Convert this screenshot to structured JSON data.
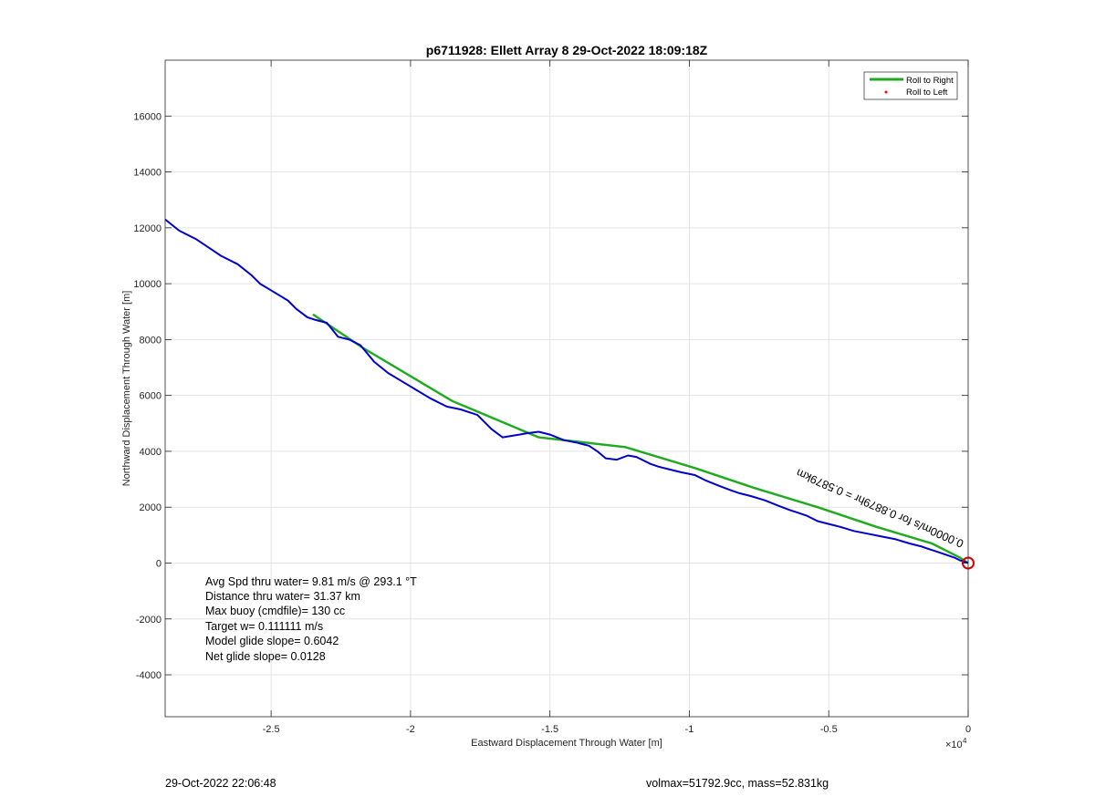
{
  "chart_data": {
    "type": "line",
    "title": "p6711928: Ellett Array 8 29-Oct-2022 18:09:18Z",
    "xlabel": "Eastward Displacement Through Water [m]",
    "ylabel": "Northward Displacement Through Water [m]",
    "x_exponent_label": "×10",
    "x_exponent": "4",
    "xlim": [
      -28800,
      0
    ],
    "ylim": [
      -5500,
      18000
    ],
    "xticks": [
      -25000,
      -20000,
      -15000,
      -10000,
      -5000,
      0
    ],
    "xtick_labels": [
      "-2.5",
      "-2",
      "-1.5",
      "-1",
      "-0.5",
      "0"
    ],
    "yticks": [
      -4000,
      -2000,
      0,
      2000,
      4000,
      6000,
      8000,
      10000,
      12000,
      14000,
      16000
    ],
    "ytick_labels": [
      "-4000",
      "-2000",
      "0",
      "2000",
      "4000",
      "6000",
      "8000",
      "10000",
      "12000",
      "14000",
      "16000"
    ],
    "grid": true,
    "legend_position": "top-right",
    "legend": [
      {
        "label": "Roll to Right",
        "color": "#1faa1f",
        "style": "line"
      },
      {
        "label": "Roll to Left",
        "color": "#ff0000",
        "style": "dot"
      }
    ],
    "series": [
      {
        "name": "Roll to Right",
        "color": "#1faa1f",
        "x": [
          -23500,
          -21700,
          -18500,
          -15400,
          -12300,
          -9800,
          -7700,
          -5400,
          -3300,
          -1300,
          -300,
          0
        ],
        "y": [
          8900,
          7700,
          5800,
          4500,
          4150,
          3400,
          2700,
          2000,
          1300,
          700,
          200,
          0
        ]
      },
      {
        "color": "#0000cc",
        "x": [
          -28800,
          -28300,
          -27700,
          -27100,
          -26800,
          -26200,
          -25700,
          -25400,
          -24900,
          -24400,
          -24100,
          -23700,
          -23400,
          -23000,
          -22600,
          -22200,
          -21800,
          -21300,
          -20800,
          -20300,
          -19800,
          -19300,
          -18700,
          -18200,
          -17600,
          -17100,
          -16700,
          -16400,
          -16100,
          -15800,
          -15400,
          -15000,
          -14500,
          -14000,
          -13600,
          -13300,
          -13000,
          -12600,
          -12200,
          -11900,
          -11700,
          -11400,
          -11100,
          -10700,
          -10300,
          -9800,
          -9400,
          -8900,
          -8500,
          -8200,
          -7800,
          -7300,
          -6800,
          -6400,
          -6100,
          -5800,
          -5400,
          -5000,
          -4600,
          -4100,
          -3600,
          -3100,
          -2600,
          -2100,
          -1700,
          -1400,
          -1100,
          -800,
          -500,
          -300,
          0
        ],
        "y": [
          12300,
          11900,
          11600,
          11200,
          11000,
          10700,
          10300,
          10000,
          9700,
          9400,
          9100,
          8800,
          8700,
          8600,
          8100,
          8000,
          7800,
          7200,
          6800,
          6500,
          6200,
          5900,
          5600,
          5500,
          5300,
          4800,
          4500,
          4550,
          4600,
          4650,
          4700,
          4600,
          4400,
          4300,
          4200,
          4000,
          3750,
          3700,
          3850,
          3800,
          3700,
          3550,
          3450,
          3350,
          3250,
          3150,
          2950,
          2750,
          2600,
          2500,
          2400,
          2250,
          2050,
          1900,
          1800,
          1700,
          1500,
          1400,
          1300,
          1150,
          1050,
          950,
          850,
          700,
          600,
          500,
          400,
          300,
          200,
          100,
          0
        ]
      }
    ],
    "end_marker": {
      "x": 0,
      "y": 0,
      "color": "#dd0000"
    },
    "rotated_annotation": "0.0000m/s for 0.8879hr = 0.5879km",
    "stats_lines": [
      "Avg Spd thru water=  9.81 m/s @ 293.1 °T",
      "Distance thru water= 31.37 km",
      "Max buoy (cmdfile)= 130 cc",
      "Target w= 0.111111 m/s",
      "Model glide slope= 0.6042",
      "Net glide slope= 0.0128"
    ]
  },
  "footer": {
    "timestamp": "29-Oct-2022 22:06:48",
    "vol_mass": "volmax=51792.9cc, mass=52.831kg"
  }
}
